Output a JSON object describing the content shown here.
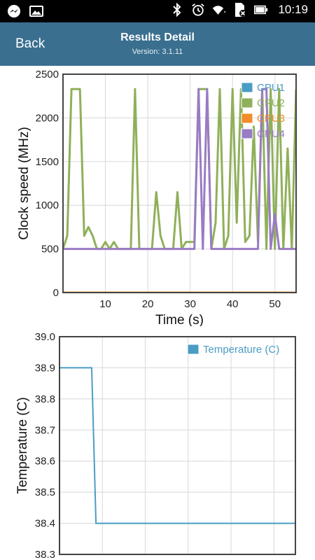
{
  "status_bar": {
    "time": "10:19",
    "left_icons": [
      "messenger-icon",
      "gallery-icon"
    ],
    "right_icons": [
      "bluetooth-icon",
      "alarm-icon",
      "wifi-icon",
      "no-sim-icon",
      "battery-icon"
    ]
  },
  "app_bar": {
    "back_label": "Back",
    "title": "Results Detail",
    "version": "Version: 3.1.11"
  },
  "colors": {
    "app_bar": "#3a6f8f",
    "cpu1": "#4a9cc4",
    "cpu2": "#8fb05a",
    "cpu3": "#f08c2a",
    "cpu4": "#9a7bc4",
    "temperature": "#4a9cc4"
  },
  "chart_data": [
    {
      "type": "line",
      "xlabel": "Time (s)",
      "ylabel": "Clock speed (MHz)",
      "xlim": [
        0,
        55
      ],
      "ylim": [
        0,
        2500
      ],
      "xticks": [
        10,
        20,
        30,
        40,
        50
      ],
      "yticks": [
        0,
        500,
        1000,
        1500,
        2000,
        2500
      ],
      "grid": true,
      "legend": "top-right",
      "series": [
        {
          "name": "CPU1",
          "color": "#4a9cc4",
          "x": [
            0,
            55
          ],
          "y": [
            0,
            0
          ]
        },
        {
          "name": "CPU2",
          "color": "#8fb05a",
          "x": [
            0,
            1,
            2,
            3,
            4,
            5,
            6,
            7,
            8,
            9,
            10,
            11,
            12,
            13,
            14,
            15,
            16,
            17,
            18,
            19,
            20,
            21,
            22,
            23,
            24,
            25,
            26,
            27,
            28,
            29,
            30,
            31,
            32,
            33,
            34,
            35,
            36,
            37,
            38,
            39,
            40,
            41,
            42,
            43,
            44,
            45,
            46,
            47,
            48,
            49,
            50,
            51,
            52,
            53,
            54,
            55
          ],
          "y": [
            500,
            650,
            2330,
            2330,
            2330,
            650,
            750,
            650,
            500,
            500,
            580,
            500,
            580,
            500,
            500,
            500,
            500,
            2330,
            500,
            500,
            500,
            500,
            1150,
            650,
            500,
            500,
            500,
            1150,
            500,
            580,
            580,
            580,
            2330,
            2330,
            2330,
            500,
            800,
            2330,
            500,
            650,
            2330,
            800,
            2330,
            580,
            650,
            1900,
            580,
            2330,
            500,
            2330,
            500,
            2330,
            500,
            1650,
            500,
            2330
          ]
        },
        {
          "name": "CPU3",
          "color": "#f08c2a",
          "x": [
            0,
            55
          ],
          "y": [
            0,
            0
          ]
        },
        {
          "name": "CPU4",
          "color": "#9a7bc4",
          "x": [
            0,
            1,
            2,
            3,
            4,
            5,
            6,
            7,
            8,
            9,
            10,
            11,
            12,
            13,
            14,
            15,
            16,
            17,
            18,
            19,
            20,
            21,
            22,
            23,
            24,
            25,
            26,
            27,
            28,
            29,
            30,
            31,
            32,
            33,
            34,
            35,
            36,
            37,
            38,
            39,
            40,
            41,
            42,
            43,
            44,
            45,
            46,
            47,
            48,
            49,
            50,
            51,
            52,
            53,
            54,
            55
          ],
          "y": [
            500,
            500,
            500,
            500,
            500,
            500,
            500,
            500,
            500,
            500,
            500,
            500,
            500,
            500,
            500,
            500,
            500,
            500,
            500,
            500,
            500,
            500,
            500,
            500,
            500,
            500,
            500,
            500,
            500,
            500,
            500,
            500,
            2330,
            500,
            2330,
            500,
            500,
            500,
            500,
            500,
            500,
            500,
            500,
            500,
            500,
            500,
            500,
            2330,
            2330,
            500,
            900,
            500,
            500,
            500,
            500,
            500
          ]
        }
      ]
    },
    {
      "type": "line",
      "xlabel": "",
      "ylabel": "Temperature (C)",
      "xlim": [
        0,
        55
      ],
      "ylim": [
        38.3,
        39.0
      ],
      "yticks": [
        38.3,
        38.4,
        38.5,
        38.6,
        38.7,
        38.8,
        38.9,
        39.0
      ],
      "grid": true,
      "legend": "top-right",
      "series": [
        {
          "name": "Temperature (C)",
          "color": "#4a9cc4",
          "x": [
            0,
            7.5,
            8.5,
            55
          ],
          "y": [
            38.9,
            38.9,
            38.4,
            38.4
          ]
        }
      ]
    }
  ]
}
